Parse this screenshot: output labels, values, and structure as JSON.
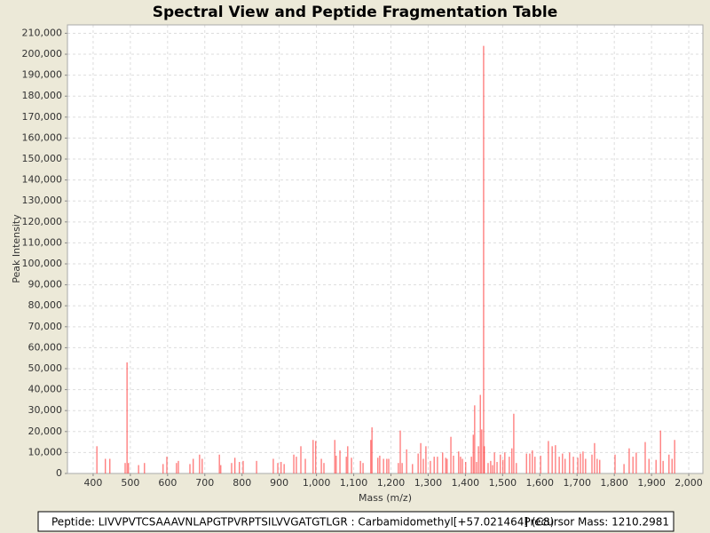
{
  "chart_data": {
    "type": "spectrum",
    "title": "Spectral View and Peptide Fragmentation Table",
    "x_label": "Mass (m/z)",
    "y_label": "Peak Intensity",
    "color": "#ff4c4c",
    "grid": true,
    "xlim": [
      331,
      2038
    ],
    "ylim": [
      0,
      214000
    ],
    "xticks": [
      400,
      500,
      600,
      700,
      800,
      900,
      {
        "value": 1000,
        "label": "1,000"
      },
      {
        "value": 1100,
        "label": "1,100"
      },
      {
        "value": 1200,
        "label": "1,200"
      },
      {
        "value": 1300,
        "label": "1,300"
      },
      {
        "value": 1400,
        "label": "1,400"
      },
      {
        "value": 1500,
        "label": "1,500"
      },
      {
        "value": 1600,
        "label": "1,600"
      },
      {
        "value": 1700,
        "label": "1,700"
      },
      {
        "value": 1800,
        "label": "1,800"
      },
      {
        "value": 1900,
        "label": "1,900"
      },
      {
        "value": 2000,
        "label": "2,000"
      }
    ],
    "yticks": [
      0,
      {
        "value": 10000,
        "label": "10,000"
      },
      {
        "value": 20000,
        "label": "20,000"
      },
      {
        "value": 30000,
        "label": "30,000"
      },
      {
        "value": 40000,
        "label": "40,000"
      },
      {
        "value": 50000,
        "label": "50,000"
      },
      {
        "value": 60000,
        "label": "60,000"
      },
      {
        "value": 70000,
        "label": "70,000"
      },
      {
        "value": 80000,
        "label": "80,000"
      },
      {
        "value": 90000,
        "label": "90,000"
      },
      {
        "value": 100000,
        "label": "100,000"
      },
      {
        "value": 110000,
        "label": "110,000"
      },
      {
        "value": 120000,
        "label": "120,000"
      },
      {
        "value": 130000,
        "label": "130,000"
      },
      {
        "value": 140000,
        "label": "140,000"
      },
      {
        "value": 150000,
        "label": "150,000"
      },
      {
        "value": 160000,
        "label": "160,000"
      },
      {
        "value": 170000,
        "label": "170,000"
      },
      {
        "value": 180000,
        "label": "180,000"
      },
      {
        "value": 190000,
        "label": "190,000"
      },
      {
        "value": 200000,
        "label": "200,000"
      },
      {
        "value": 210000,
        "label": "210,000"
      }
    ],
    "x": [
      410,
      433,
      445,
      486,
      491,
      495,
      522,
      538,
      588,
      598,
      624,
      629,
      660,
      669,
      686,
      693,
      739,
      743,
      772,
      781,
      793,
      803,
      839,
      884,
      896,
      905,
      913,
      939,
      946,
      958,
      970,
      991,
      998,
      1013,
      1020,
      1049,
      1053,
      1063,
      1080,
      1084,
      1094,
      1118,
      1125,
      1146,
      1149,
      1165,
      1170,
      1180,
      1189,
      1194,
      1220,
      1225,
      1230,
      1242,
      1258,
      1273,
      1280,
      1287,
      1294,
      1306,
      1316,
      1325,
      1339,
      1347,
      1351,
      1361,
      1368,
      1382,
      1387,
      1392,
      1401,
      1416,
      1421,
      1425,
      1430,
      1435,
      1440,
      1444,
      1449,
      1451,
      1461,
      1468,
      1473,
      1478,
      1485,
      1494,
      1501,
      1506,
      1518,
      1525,
      1530,
      1537,
      1564,
      1573,
      1580,
      1587,
      1602,
      1623,
      1633,
      1642,
      1652,
      1661,
      1668,
      1680,
      1690,
      1702,
      1709,
      1716,
      1723,
      1740,
      1747,
      1754,
      1761,
      1802,
      1826,
      1840,
      1850,
      1859,
      1883,
      1893,
      1912,
      1924,
      1931,
      1947,
      1955,
      1962
    ],
    "values": [
      13000,
      7000,
      7000,
      5000,
      53000,
      5000,
      4000,
      5000,
      4500,
      8000,
      5000,
      6000,
      4500,
      7000,
      9000,
      7000,
      9000,
      4000,
      5000,
      7500,
      5500,
      6000,
      6000,
      7000,
      5000,
      5500,
      4500,
      9000,
      8000,
      13000,
      7000,
      16000,
      15500,
      7000,
      5000,
      16000,
      8500,
      11000,
      8000,
      13000,
      7500,
      6000,
      5000,
      16000,
      22000,
      7500,
      8500,
      7000,
      7000,
      7000,
      5000,
      20500,
      5000,
      11500,
      4500,
      9500,
      14500,
      7000,
      13000,
      6000,
      8000,
      8000,
      10000,
      7500,
      7000,
      17500,
      8500,
      10500,
      8000,
      7000,
      5500,
      8000,
      18500,
      32500,
      5500,
      13000,
      37500,
      21000,
      204000,
      13000,
      5000,
      6000,
      4000,
      10000,
      5500,
      9000,
      6500,
      10000,
      8000,
      12000,
      28500,
      5000,
      9500,
      9500,
      11000,
      8000,
      8500,
      15500,
      13000,
      13500,
      8000,
      9500,
      7000,
      10000,
      8000,
      7500,
      9500,
      10500,
      7000,
      9000,
      14500,
      7000,
      6500,
      9000,
      4500,
      12000,
      8000,
      10000,
      15000,
      7000,
      6500,
      20500,
      6000,
      9000,
      7000,
      16000
    ]
  },
  "footer": {
    "peptide": "Peptide: LIVVPVTCSAAAVNLAPGTPVRPTSILVVGATGTLGR : Carbamidomethyl[+57.021464] (C8)",
    "precursor_mass": "Precursor Mass: 1210.2981"
  }
}
